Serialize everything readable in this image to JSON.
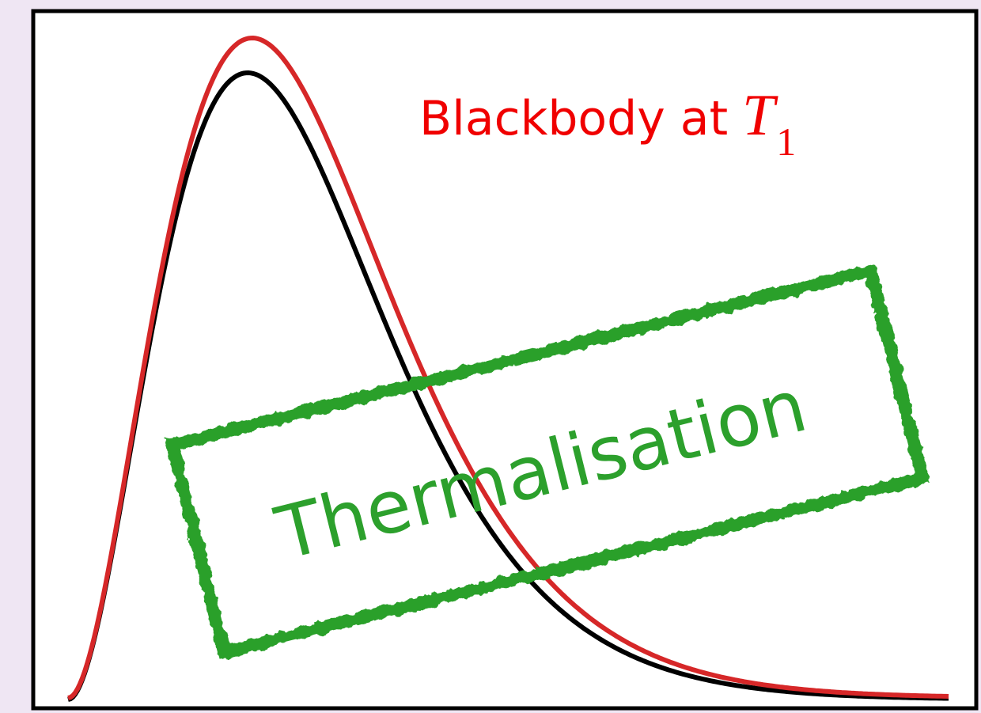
{
  "label": {
    "text": "Blackbody at",
    "symbol": "T",
    "subscript": "1"
  },
  "stamp": "Thermalisation"
}
